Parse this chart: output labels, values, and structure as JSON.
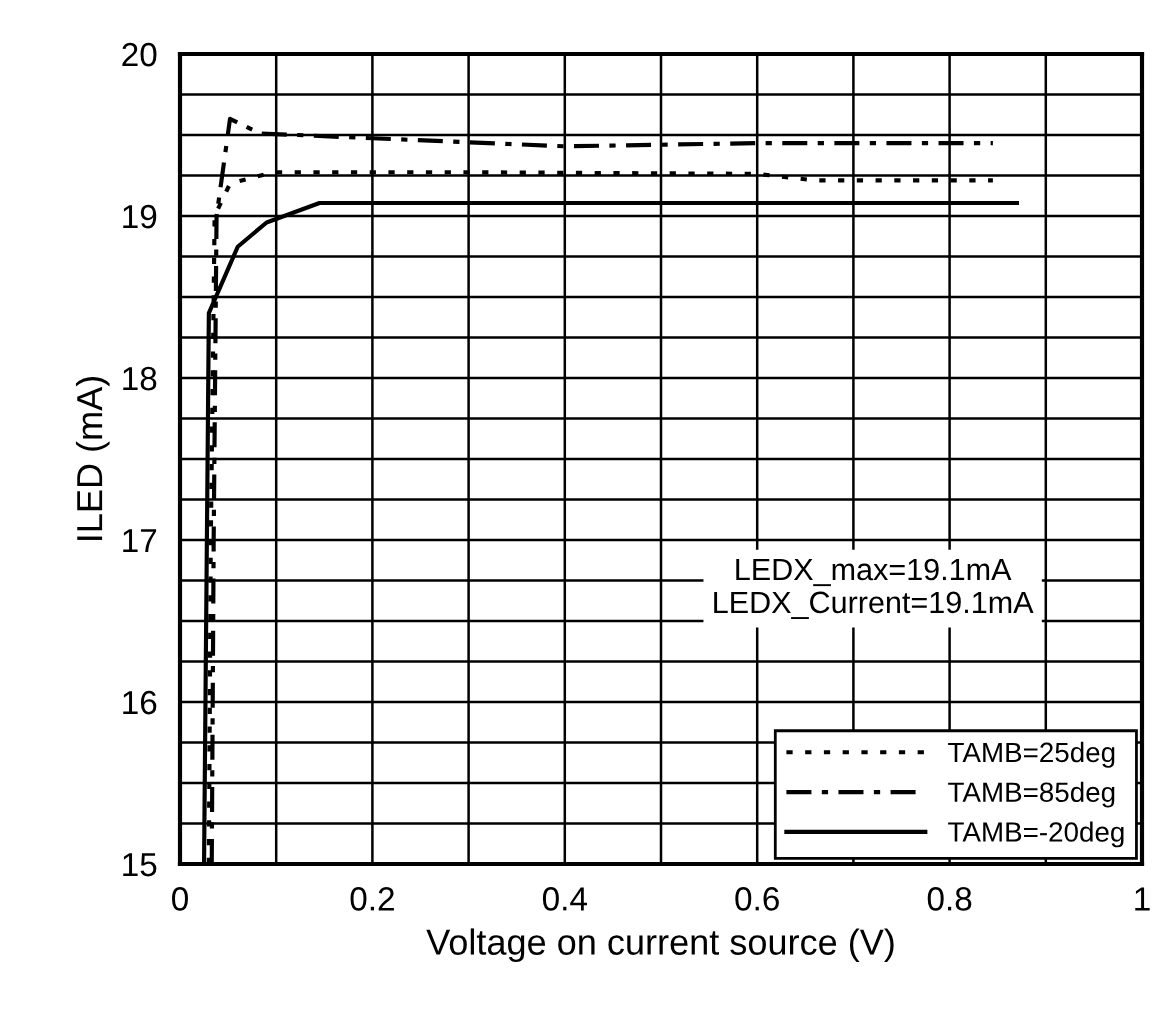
{
  "chart_data": {
    "type": "line",
    "xlabel": "Voltage on current source (V)",
    "ylabel": "ILED (mA)",
    "xlim": [
      0,
      1
    ],
    "ylim": [
      15,
      20
    ],
    "xticks": [
      0,
      {
        "value": 0.1,
        "label": null
      },
      0.2,
      {
        "value": 0.3,
        "label": null
      },
      0.4,
      {
        "value": 0.5,
        "label": null
      },
      0.6,
      {
        "value": 0.7,
        "label": null
      },
      0.8,
      {
        "value": 0.9,
        "label": null
      },
      1
    ],
    "yticks": [
      15,
      {
        "value": 15.25,
        "label": null
      },
      {
        "value": 15.5,
        "label": null
      },
      {
        "value": 15.75,
        "label": null
      },
      16,
      {
        "value": 16.25,
        "label": null
      },
      {
        "value": 16.5,
        "label": null
      },
      {
        "value": 16.75,
        "label": null
      },
      17,
      {
        "value": 17.25,
        "label": null
      },
      {
        "value": 17.5,
        "label": null
      },
      {
        "value": 17.75,
        "label": null
      },
      18,
      {
        "value": 18.25,
        "label": null
      },
      {
        "value": 18.5,
        "label": null
      },
      {
        "value": 18.75,
        "label": null
      },
      19,
      {
        "value": 19.25,
        "label": null
      },
      {
        "value": 19.5,
        "label": null
      },
      {
        "value": 19.75,
        "label": null
      },
      20
    ],
    "grid": true,
    "legend": "bottom right",
    "series": [
      {
        "name": "TAMB=25deg",
        "color": "#000000",
        "line_style": "dotted",
        "x": [
          0.03,
          0.032,
          0.036,
          0.052,
          0.097,
          0.3,
          0.6,
          0.66,
          0.845
        ],
        "values": [
          15,
          17,
          19.0,
          19.2,
          19.27,
          19.27,
          19.26,
          19.22,
          19.22
        ]
      },
      {
        "name": "TAMB=85deg",
        "color": "#000000",
        "line_style": "dashdot",
        "x": [
          0.033,
          0.035,
          0.038,
          0.052,
          0.083,
          0.16,
          0.4,
          0.6,
          0.845
        ],
        "values": [
          15,
          17,
          19.0,
          19.6,
          19.51,
          19.49,
          19.43,
          19.45,
          19.45
        ]
      },
      {
        "name": "TAMB=-20deg",
        "color": "#000000",
        "line_style": "solid",
        "x": [
          0.025,
          0.03,
          0.06,
          0.09,
          0.145,
          0.87
        ],
        "values": [
          15,
          18.4,
          18.81,
          18.96,
          19.08,
          19.08
        ]
      }
    ],
    "annotations": [
      "LEDX_max=19.1mA\nLEDX_Current=19.1mA"
    ]
  }
}
